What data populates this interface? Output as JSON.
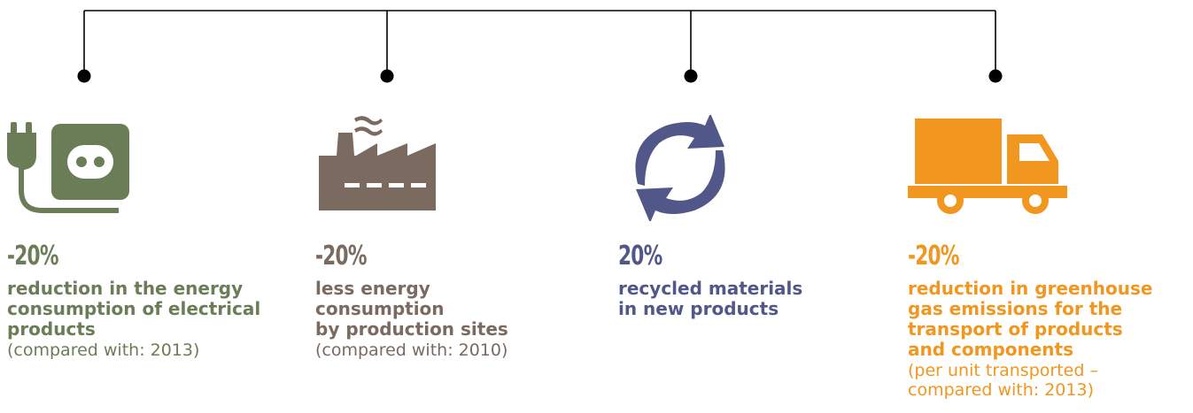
{
  "colors": {
    "line": "#000000",
    "green": "#6b7d57",
    "brown": "#7a6a60",
    "blue": "#515788",
    "orange": "#f1961e"
  },
  "items": [
    {
      "icon": "plug-socket-icon",
      "value": "-20%",
      "description": "reduction in the energy\nconsumption of electrical\nproducts",
      "note": "(compared with: 2013)",
      "color": "#6b7d57"
    },
    {
      "icon": "factory-icon",
      "value": "-20%",
      "description": "less energy\nconsumption\nby production sites",
      "note": "(compared with: 2010)",
      "color": "#7a6a60"
    },
    {
      "icon": "recycle-arrows-icon",
      "value": "20%",
      "description": "recycled materials\nin new products",
      "note": "",
      "color": "#515788"
    },
    {
      "icon": "truck-icon",
      "value": "-20%",
      "description": "reduction in greenhouse\ngas emissions for the\ntransport of products\nand components",
      "note": "(per unit transported –\ncompared with: 2013)",
      "color": "#f1961e"
    }
  ]
}
